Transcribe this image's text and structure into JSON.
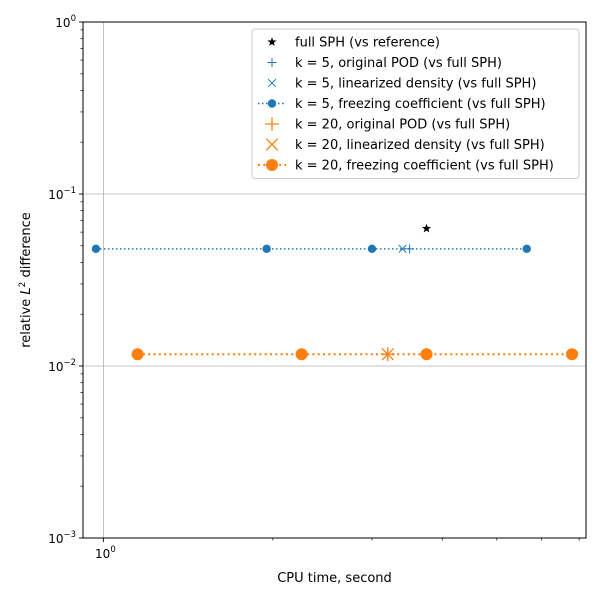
{
  "chart_data": {
    "type": "line",
    "title": "",
    "xlabel": "CPU time, second",
    "ylabel_prefix": "relative ",
    "ylabel_var": "L",
    "ylabel_sup": "2",
    "ylabel_suffix": " difference",
    "x_scale": "log",
    "y_scale": "log",
    "xlim": [
      0.92,
      7.2
    ],
    "ylim": [
      0.001,
      1
    ],
    "x_ticks": [
      {
        "value": 1,
        "base": "10",
        "exp": "0"
      }
    ],
    "x_minor_ticks": [
      2,
      3,
      4,
      5,
      6,
      7
    ],
    "y_ticks": [
      {
        "value": 0.001,
        "base": "10",
        "exp": "−3"
      },
      {
        "value": 0.01,
        "base": "10",
        "exp": "−2"
      },
      {
        "value": 0.1,
        "base": "10",
        "exp": "−1"
      },
      {
        "value": 1,
        "base": "10",
        "exp": "0"
      }
    ],
    "grid": true,
    "legend_position": "upper right",
    "series": [
      {
        "name": "full SPH (vs reference)",
        "color": "#000000",
        "marker": "star",
        "linestyle": "none",
        "x": [
          3.75
        ],
        "y": [
          0.063
        ]
      },
      {
        "name": "k = 5, original POD (vs full SPH)",
        "color": "#1f77b4",
        "marker": "plus",
        "linestyle": "none",
        "x": [
          3.5
        ],
        "y": [
          0.048
        ]
      },
      {
        "name": "k = 5, linearized density (vs full SPH)",
        "color": "#1f77b4",
        "marker": "x",
        "linestyle": "none",
        "x": [
          3.4
        ],
        "y": [
          0.048
        ]
      },
      {
        "name": "k = 5, freezing coefficient (vs full SPH)",
        "color": "#1f77b4",
        "marker": "circle",
        "linestyle": "dotted",
        "x": [
          0.97,
          1.95,
          3.0,
          5.65
        ],
        "y": [
          0.048,
          0.048,
          0.048,
          0.048
        ]
      },
      {
        "name": "k = 20, original POD (vs full SPH)",
        "color": "#ff7f0e",
        "marker": "plus-large",
        "linestyle": "none",
        "x": [
          3.2
        ],
        "y": [
          0.0117
        ]
      },
      {
        "name": "k = 20, linearized density (vs full SPH)",
        "color": "#ff7f0e",
        "marker": "x-large",
        "linestyle": "none",
        "x": [
          3.2
        ],
        "y": [
          0.0117
        ]
      },
      {
        "name": "k = 20, freezing coefficient (vs full SPH)",
        "color": "#ff7f0e",
        "marker": "circle-large",
        "linestyle": "dotted",
        "x": [
          1.15,
          2.25,
          3.75,
          6.8
        ],
        "y": [
          0.0117,
          0.0117,
          0.0117,
          0.0117
        ]
      }
    ]
  }
}
